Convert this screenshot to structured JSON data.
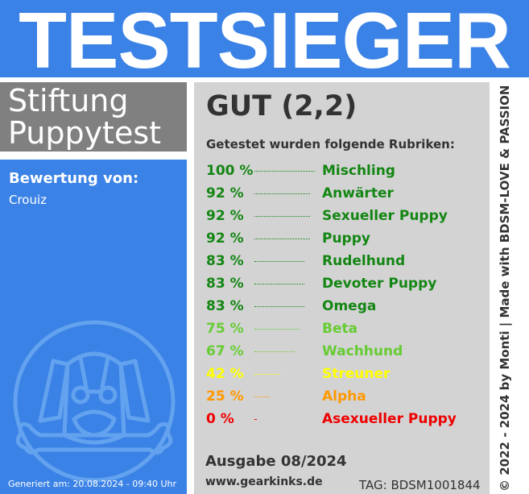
{
  "header": {
    "title": "TESTSIEGER"
  },
  "org": {
    "line1": "Stiftung",
    "line2": "Puppytest"
  },
  "rating": {
    "label": "Bewertung von:",
    "user": "Crouiz"
  },
  "mascot_icon": "puppy-mask-bone-icon",
  "result": {
    "grade": "GUT (2,2)",
    "tested_label": "Getestet wurden folgende Rubriken:",
    "categories": [
      {
        "pct": "100 %",
        "value": 100,
        "name": "Mischling",
        "color": "#138613"
      },
      {
        "pct": "92 %",
        "value": 92,
        "name": "Anwärter",
        "color": "#138613"
      },
      {
        "pct": "92 %",
        "value": 92,
        "name": "Sexueller Puppy",
        "color": "#138613"
      },
      {
        "pct": "92 %",
        "value": 92,
        "name": "Puppy",
        "color": "#138613"
      },
      {
        "pct": "83 %",
        "value": 83,
        "name": "Rudelhund",
        "color": "#138613"
      },
      {
        "pct": "83 %",
        "value": 83,
        "name": "Devoter Puppy",
        "color": "#138613"
      },
      {
        "pct": "83 %",
        "value": 83,
        "name": "Omega",
        "color": "#138613"
      },
      {
        "pct": "75 %",
        "value": 75,
        "name": "Beta",
        "color": "#66cc33"
      },
      {
        "pct": "67 %",
        "value": 67,
        "name": "Wachhund",
        "color": "#66cc33"
      },
      {
        "pct": "42 %",
        "value": 42,
        "name": "Streuner",
        "color": "#ffff00"
      },
      {
        "pct": "25 %",
        "value": 25,
        "name": "Alpha",
        "color": "#ff9900"
      },
      {
        "pct": "0 %",
        "value": 0,
        "name": "Asexueller Puppy",
        "color": "#ee0000"
      }
    ]
  },
  "footer": {
    "issue": "Ausgabe 08/2024",
    "website": "www.gearkinks.de",
    "tag": "TAG: BDSM1001844",
    "generated": "Generiert am: 20.08.2024 - 09:40 Uhr",
    "copyright": "© 2022 - 2024 by Monti | Made with BDSM-LOVE & PASSION"
  },
  "colors": {
    "brand_blue": "#3b82e6",
    "panel_gray": "#d4d3d4",
    "org_gray": "#808080"
  }
}
